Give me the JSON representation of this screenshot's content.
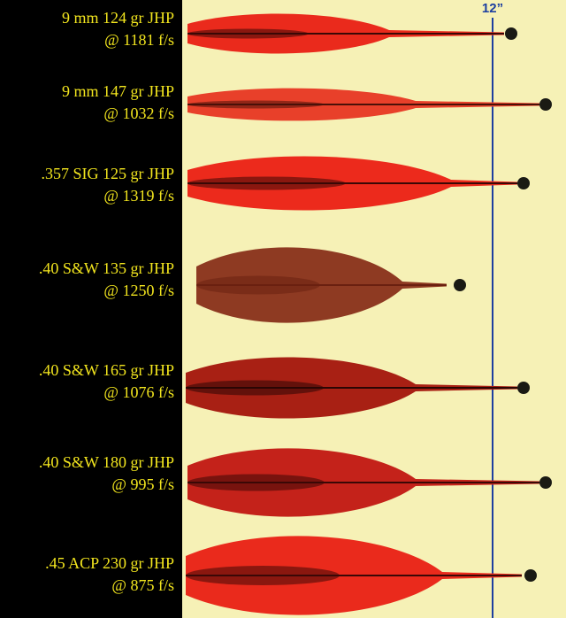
{
  "marker": "12”",
  "labels": [
    {
      "line1": "9 mm 124 gr JHP",
      "line2": "@ 1181 f/s"
    },
    {
      "line1": "9 mm 147 gr JHP",
      "line2": "@ 1032 f/s"
    },
    {
      "line1": ".357 SIG 125 gr JHP",
      "line2": "@ 1319 f/s"
    },
    {
      "line1": ".40 S&W 135 gr JHP",
      "line2": "@ 1250 f/s"
    },
    {
      "line1": ".40 S&W 165 gr JHP",
      "line2": "@ 1076 f/s"
    },
    {
      "line1": ".40 S&W 180 gr JHP",
      "line2": "@ 995 f/s"
    },
    {
      "line1": ".45 ACP 230 gr JHP",
      "line2": "@ 875 f/s"
    }
  ]
}
